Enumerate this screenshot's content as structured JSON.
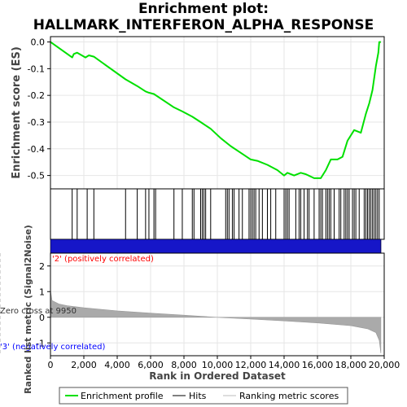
{
  "chart_data": {
    "type": "line",
    "title_line1": "Enrichment plot:",
    "title_line2": "HALLMARK_INTERFERON_ALPHA_RESPONSE",
    "xlabel": "Rank in Ordered Dataset",
    "es_panel": {
      "ylabel": "Enrichment score (ES)",
      "ylim": [
        -0.55,
        0.02
      ],
      "yticks": [
        0.0,
        -0.1,
        -0.2,
        -0.3,
        -0.4,
        -0.5
      ],
      "ytick_labels": [
        "0.0",
        "-0.1",
        "-0.2",
        "-0.3",
        "-0.4",
        "-0.5"
      ],
      "line_color": "#00e000",
      "series": {
        "name": "Enrichment profile",
        "x": [
          0,
          1300,
          1400,
          1600,
          2100,
          2300,
          2600,
          4500,
          5200,
          5700,
          5900,
          6200,
          7400,
          7900,
          8500,
          9000,
          9600,
          10200,
          10800,
          11400,
          12000,
          12400,
          13000,
          13600,
          14000,
          14200,
          14600,
          15000,
          15300,
          15800,
          16200,
          16500,
          16800,
          17200,
          17500,
          17800,
          18200,
          18600,
          18900,
          19100,
          19300,
          19500,
          19650,
          19700,
          19800
        ],
        "y": [
          0.0,
          -0.058,
          -0.045,
          -0.04,
          -0.058,
          -0.05,
          -0.055,
          -0.14,
          -0.165,
          -0.185,
          -0.19,
          -0.195,
          -0.245,
          -0.26,
          -0.28,
          -0.3,
          -0.325,
          -0.36,
          -0.39,
          -0.415,
          -0.44,
          -0.445,
          -0.46,
          -0.48,
          -0.5,
          -0.49,
          -0.5,
          -0.49,
          -0.495,
          -0.51,
          -0.51,
          -0.48,
          -0.44,
          -0.44,
          -0.43,
          -0.37,
          -0.33,
          -0.34,
          -0.27,
          -0.23,
          -0.18,
          -0.09,
          -0.04,
          0.0,
          0.0
        ]
      }
    },
    "hits": [
      1300,
      1600,
      2200,
      2600,
      4500,
      5200,
      5700,
      5900,
      6200,
      6300,
      7400,
      7900,
      8500,
      8600,
      9000,
      9100,
      9200,
      9300,
      9600,
      10500,
      10600,
      10700,
      10900,
      11000,
      11300,
      11500,
      11900,
      12000,
      12100,
      12200,
      12300,
      12500,
      12700,
      13000,
      13200,
      13500,
      14000,
      14100,
      14200,
      14300,
      14700,
      14900,
      15000,
      15200,
      15400,
      15500,
      15800,
      16100,
      16200,
      16300,
      16500,
      16600,
      16700,
      16800,
      17000,
      17300,
      17400,
      17600,
      17700,
      17800,
      17900,
      18100,
      18200,
      18300,
      18500,
      18800,
      18900,
      19000,
      19100,
      19200,
      19300,
      19400,
      19500,
      19600,
      19700
    ],
    "metric_panel": {
      "ylabel": "Ranked list metric (Signal2Noise)",
      "ylim": [
        -1.5,
        2.5
      ],
      "yticks": [
        2,
        1,
        0,
        -1
      ],
      "ytick_labels": [
        "2",
        "1",
        "0",
        "-1"
      ],
      "zero_cross_label": "Zero cross at 9950",
      "zero_cross": 9950,
      "pos_label": "'2' (positively correlated)",
      "neg_label": "'3' (negatively correlated)",
      "pos_color": "#ff0000",
      "neg_color": "#0000ff",
      "metric_x": [
        0,
        100,
        500,
        1000,
        2000,
        4000,
        6000,
        8000,
        9950,
        12000,
        14000,
        16000,
        18000,
        19000,
        19500,
        19700,
        19800
      ],
      "metric_y": [
        1.05,
        0.65,
        0.52,
        0.45,
        0.37,
        0.25,
        0.16,
        0.08,
        0.0,
        -0.07,
        -0.14,
        -0.22,
        -0.33,
        -0.45,
        -0.6,
        -0.9,
        -1.4
      ]
    },
    "xlim": [
      0,
      20000
    ],
    "xticks": [
      0,
      2000,
      4000,
      6000,
      8000,
      10000,
      12000,
      14000,
      16000,
      18000,
      20000
    ],
    "xtick_labels": [
      "0",
      "2,000",
      "4,000",
      "6,000",
      "8,000",
      "10,000",
      "12,000",
      "14,000",
      "16,000",
      "18,000",
      "20,000"
    ],
    "dataset_size": 19800,
    "legend": {
      "placement": "bottom",
      "entries": [
        "Enrichment profile",
        "Hits",
        "Ranking metric scores"
      ]
    }
  }
}
